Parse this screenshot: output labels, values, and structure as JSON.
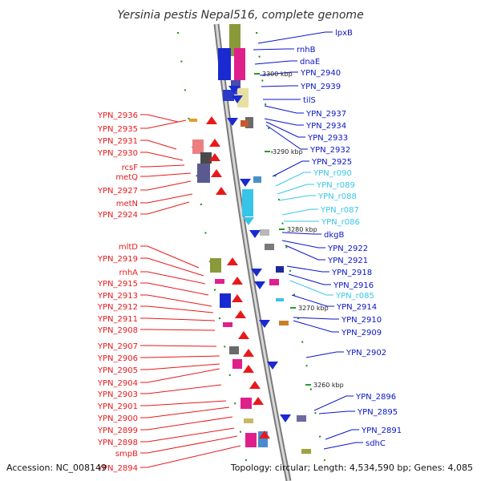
{
  "title": "Yersinia pestis Nepal516, complete genome",
  "footer": {
    "accession": "Accession: NC_008149",
    "summary": "Topology: circular; Length: 4,534,590 bp; Genes: 4,085"
  },
  "colors": {
    "left_labels": "#e8191b",
    "right_labels": "#0a14c8",
    "rna_labels": "#39c6e8",
    "backbone": "#9c9c9c",
    "tick": "#2a9a2a"
  },
  "scale_labels": [
    "3300 kbp",
    "3290 kbp",
    "3280 kbp",
    "3270 kbp",
    "3260 kbp"
  ],
  "left_labels": [
    "YPN_2936",
    "YPN_2935",
    "YPN_2931",
    "YPN_2930",
    "rcsF",
    "metQ",
    "YPN_2927",
    "metN",
    "YPN_2924",
    "mltD",
    "YPN_2919",
    "rnhA",
    "YPN_2915",
    "YPN_2913",
    "YPN_2912",
    "YPN_2911",
    "YPN_2908",
    "YPN_2907",
    "YPN_2906",
    "YPN_2905",
    "YPN_2904",
    "YPN_2903",
    "YPN_2901",
    "YPN_2900",
    "YPN_2899",
    "YPN_2898",
    "smpB",
    "YPN_2894"
  ],
  "right_labels": [
    "lpxB",
    "rnhB",
    "dnaE",
    "YPN_2940",
    "YPN_2939",
    "tilS",
    "YPN_2937",
    "YPN_2934",
    "YPN_2933",
    "YPN_2932",
    "YPN_2925",
    "YPN_r090",
    "YPN_r089",
    "YPN_r088",
    "YPN_r087",
    "YPN_r086",
    "dkgB",
    "YPN_2922",
    "YPN_2921",
    "YPN_2918",
    "YPN_2916",
    "YPN_r085",
    "YPN_2914",
    "YPN_2910",
    "YPN_2909",
    "YPN_2902",
    "YPN_2896",
    "YPN_2895",
    "YPN_2891",
    "sdhC"
  ]
}
